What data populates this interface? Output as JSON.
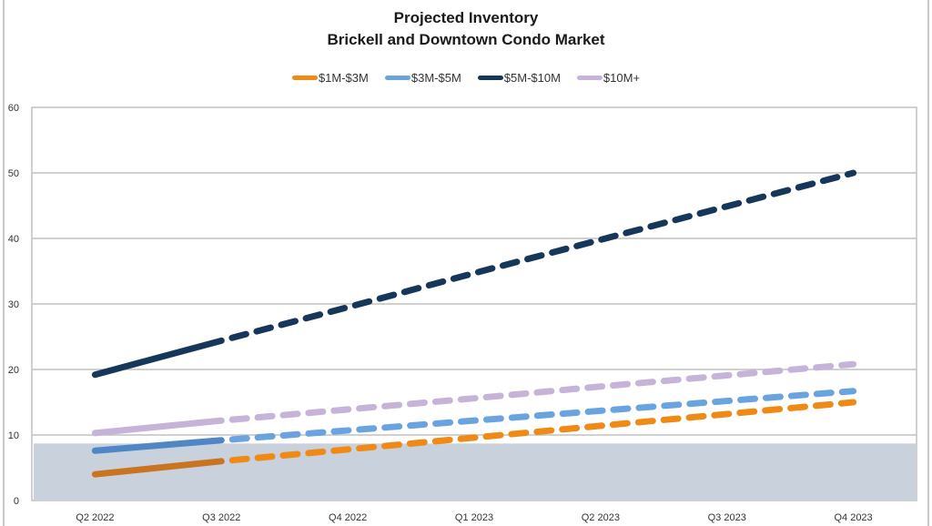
{
  "chart_data": {
    "type": "line",
    "title": "Projected Inventory",
    "subtitle": "Brickell and Downtown Condo Market",
    "xlabel": "",
    "ylabel": "",
    "categories": [
      "Q2 2022",
      "Q3 2022",
      "Q4 2022",
      "Q1 2023",
      "Q2 2023",
      "Q3 2023",
      "Q4 2023"
    ],
    "ylim": [
      0,
      60
    ],
    "yticks": [
      0,
      10,
      20,
      30,
      40,
      50,
      60
    ],
    "grid": true,
    "legend_position": "top-center",
    "actual_through": "Q3 2022",
    "shaded_band": {
      "from": 0,
      "to": 8.7,
      "color": "#c9d1dc"
    },
    "series": [
      {
        "name": "$1M-$3M",
        "color": "#ef8a17",
        "actual_color": "#c87420",
        "values": [
          4.0,
          6.0,
          7.8,
          9.6,
          11.4,
          13.2,
          15.0
        ]
      },
      {
        "name": "$3M-$5M",
        "color": "#6aa4e0",
        "actual_color": "#4f86c6",
        "values": [
          7.6,
          9.2,
          10.7,
          12.2,
          13.7,
          15.2,
          16.7
        ]
      },
      {
        "name": "$5M-$10M",
        "color": "#16365a",
        "actual_color": "#16365a",
        "values": [
          19.2,
          24.4,
          29.5,
          34.7,
          39.8,
          44.9,
          50.0
        ]
      },
      {
        "name": "$10M+",
        "color": "#c5b4d8",
        "actual_color": "#c5b4d8",
        "values": [
          10.3,
          12.2,
          13.9,
          15.6,
          17.4,
          19.1,
          20.8
        ]
      }
    ]
  }
}
